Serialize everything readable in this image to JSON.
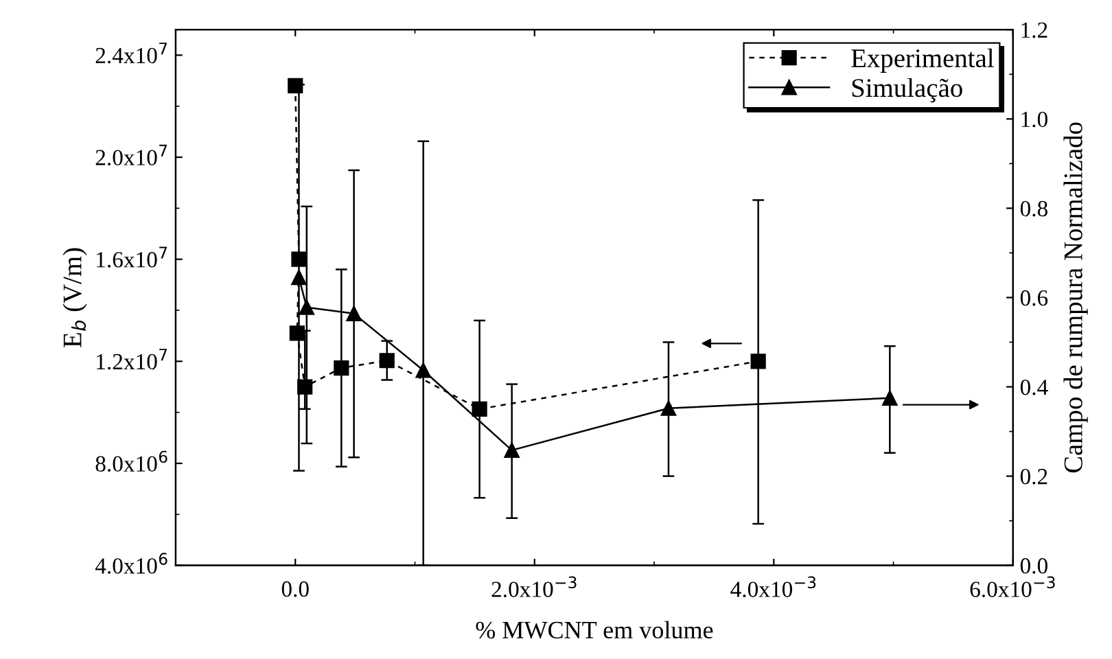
{
  "chart_data": {
    "type": "line",
    "xlabel": "% MWCNT em volume",
    "ylabel": "E$_{b}$ (V/m)",
    "y2label": "Campo de rumpura Normalizado",
    "xlim": [
      -0.001,
      0.006
    ],
    "xticks": [
      {
        "value": 0,
        "label": "0.0"
      },
      {
        "value": 0.002,
        "label": "2.0x10$^{−3}$"
      },
      {
        "value": 0.004,
        "label": "4.0x10$^{−3}$"
      },
      {
        "value": 0.006,
        "label": "6.0x10$^{−3}$"
      }
    ],
    "ylim": [
      4000000,
      25000000
    ],
    "yticks": [
      {
        "value": 4000000,
        "label": "4.0x10$^{6}$"
      },
      {
        "value": 8000000,
        "label": "8.0x10$^{6}$"
      },
      {
        "value": 12000000,
        "label": "1.2x10$^{7}$"
      },
      {
        "value": 16000000,
        "label": "1.6x10$^{7}$"
      },
      {
        "value": 20000000,
        "label": "2.0x10$^{7}$"
      },
      {
        "value": 24000000,
        "label": "2.4x10$^{7}$"
      }
    ],
    "y2lim": [
      0,
      1.2
    ],
    "y2ticks": [
      {
        "value": 0,
        "label": "0.0"
      },
      {
        "value": 0.2,
        "label": "0.2"
      },
      {
        "value": 0.4,
        "label": "0.4"
      },
      {
        "value": 0.6,
        "label": "0.6"
      },
      {
        "value": 0.8,
        "label": "0.8"
      },
      {
        "value": 1.0,
        "label": "1.0"
      },
      {
        "value": 1.2,
        "label": "1.2"
      }
    ],
    "legend": "top right",
    "grid": false,
    "series": [
      {
        "name": "Experimental",
        "color": "#000000",
        "marker": "square",
        "line_style": "dashed",
        "axis": "y",
        "x": [
          0,
          3e-05,
          1.5e-05,
          8e-05,
          0.000385,
          0.000766,
          0.00154,
          0.00387
        ],
        "values": [
          22800000,
          16000000,
          13100000,
          11000000,
          11740000,
          12030000,
          10130000,
          12000000
        ],
        "errors": [
          null,
          null,
          null,
          [
            10130000,
            13200000
          ],
          [
            7870000,
            15600000
          ],
          [
            11270000,
            12800000
          ],
          [
            6650000,
            13600000
          ],
          [
            5630000,
            18320000
          ]
        ]
      },
      {
        "name": "Simulação",
        "color": "#000000",
        "marker": "triangle",
        "line_style": "solid",
        "axis": "y2",
        "x": [
          3e-05,
          9.5e-05,
          0.00049,
          0.00107,
          0.00181,
          0.00312,
          0.00497
        ],
        "values": [
          0.645,
          0.578,
          0.564,
          0.437,
          0.258,
          0.352,
          0.375
        ],
        "errors": [
          [
            0.212,
            1.077
          ],
          [
            0.273,
            0.804
          ],
          [
            0.242,
            0.885
          ],
          [
            0.0,
            0.95
          ],
          [
            0.106,
            0.406
          ],
          [
            0.2,
            0.5
          ],
          [
            0.252,
            0.491
          ]
        ]
      }
    ]
  }
}
